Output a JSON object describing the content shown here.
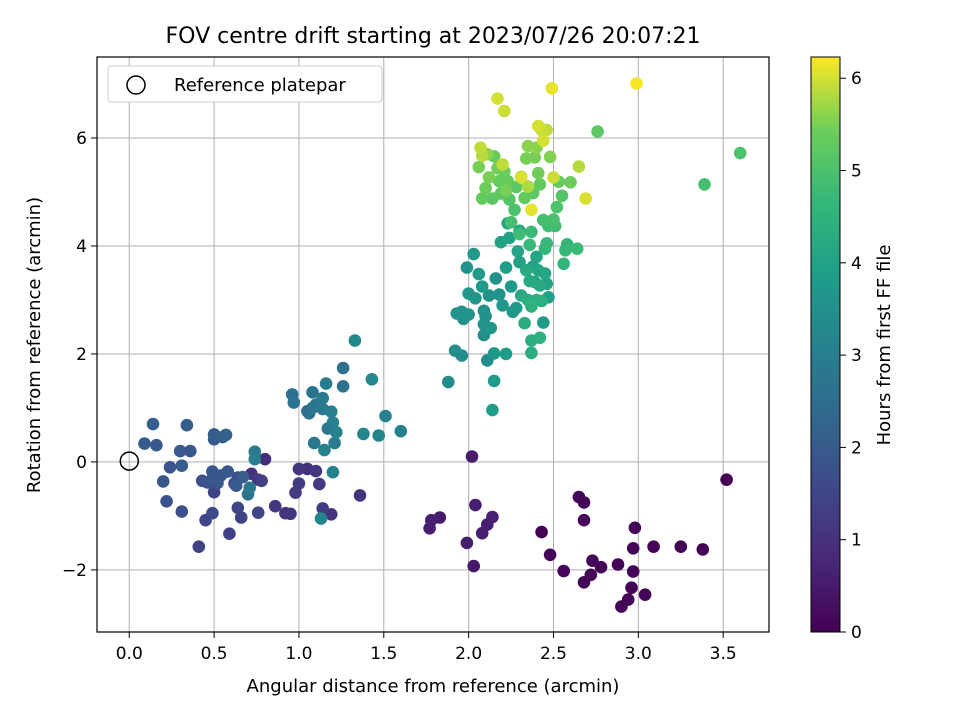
{
  "chart_data": {
    "type": "scatter",
    "title": "FOV centre drift starting at 2023/07/26 20:07:21",
    "xlabel": "Angular distance from reference (arcmin)",
    "ylabel": "Rotation from reference (arcmin)",
    "xlim": [
      -0.19,
      3.77
    ],
    "ylim": [
      -3.15,
      7.5
    ],
    "xticks": [
      "0.0",
      "0.5",
      "1.0",
      "1.5",
      "2.0",
      "2.5",
      "3.0",
      "3.5"
    ],
    "yticks": [
      "−2",
      "0",
      "2",
      "4",
      "6"
    ],
    "grid": true,
    "legend": {
      "position": "upper-left",
      "entries": [
        "Reference platepar"
      ]
    },
    "reference_point": {
      "x": 0.0,
      "y": 0.0,
      "label": "Reference platepar"
    },
    "colorbar": {
      "label": "Hours from first FF file",
      "min": 0,
      "max": 6.23,
      "ticks": [
        "0",
        "1",
        "2",
        "3",
        "4",
        "5",
        "6"
      ],
      "colormap": "viridis"
    },
    "points": [
      [
        2.43,
        -1.3,
        0.05
      ],
      [
        2.48,
        -1.72,
        0.08
      ],
      [
        2.56,
        -2.02,
        0.1
      ],
      [
        2.65,
        -0.65,
        0.12
      ],
      [
        2.68,
        -0.75,
        0.06
      ],
      [
        2.68,
        -1.08,
        0.04
      ],
      [
        2.68,
        -2.23,
        0.05
      ],
      [
        2.72,
        -2.09,
        0.07
      ],
      [
        2.73,
        -1.83,
        0.09
      ],
      [
        2.78,
        -1.95,
        0.05
      ],
      [
        2.88,
        -1.9,
        0.03
      ],
      [
        2.9,
        -2.68,
        0.04
      ],
      [
        2.94,
        -2.55,
        0.06
      ],
      [
        2.96,
        -2.33,
        0.05
      ],
      [
        2.97,
        -2.03,
        0.08
      ],
      [
        2.97,
        -1.6,
        0.07
      ],
      [
        2.98,
        -1.22,
        0.05
      ],
      [
        3.04,
        -2.46,
        0.04
      ],
      [
        3.09,
        -1.57,
        0.03
      ],
      [
        3.25,
        -1.57,
        0.02
      ],
      [
        3.38,
        -1.62,
        0.03
      ],
      [
        3.52,
        -0.33,
        0.02
      ],
      [
        1.77,
        -1.23,
        0.55
      ],
      [
        1.78,
        -1.08,
        0.6
      ],
      [
        1.83,
        -1.03,
        0.5
      ],
      [
        1.99,
        -1.5,
        0.55
      ],
      [
        2.02,
        0.1,
        0.5
      ],
      [
        2.03,
        -1.93,
        0.45
      ],
      [
        2.04,
        -0.8,
        0.55
      ],
      [
        2.08,
        -1.32,
        0.6
      ],
      [
        2.11,
        -1.16,
        0.58
      ],
      [
        2.14,
        -1.02,
        0.62
      ],
      [
        0.72,
        -0.22,
        1.0
      ],
      [
        0.8,
        0.05,
        0.9
      ],
      [
        0.86,
        -0.82,
        1.1
      ],
      [
        0.92,
        -0.95,
        1.05
      ],
      [
        0.95,
        -0.96,
        1.15
      ],
      [
        0.98,
        -0.57,
        1.2
      ],
      [
        1.0,
        -0.4,
        1.25
      ],
      [
        1.0,
        -0.13,
        1.1
      ],
      [
        1.05,
        -0.13,
        1.0
      ],
      [
        1.1,
        -0.17,
        1.15
      ],
      [
        1.12,
        -0.41,
        1.2
      ],
      [
        1.14,
        -0.86,
        1.25
      ],
      [
        1.19,
        -0.97,
        1.05
      ],
      [
        1.36,
        -0.62,
        1.05
      ],
      [
        0.78,
        -0.35,
        1.3
      ],
      [
        0.76,
        -0.33,
        1.2
      ],
      [
        0.41,
        -1.57,
        1.4
      ],
      [
        0.45,
        -1.08,
        1.5
      ],
      [
        0.49,
        -0.95,
        1.55
      ],
      [
        0.5,
        -0.56,
        1.45
      ],
      [
        0.59,
        -1.33,
        1.35
      ],
      [
        0.64,
        -0.85,
        1.5
      ],
      [
        0.66,
        -1.03,
        1.4
      ],
      [
        0.62,
        -0.4,
        1.6
      ],
      [
        0.64,
        -0.29,
        1.65
      ],
      [
        0.76,
        -0.94,
        1.5
      ],
      [
        0.09,
        0.34,
        2.0
      ],
      [
        0.14,
        0.7,
        2.1
      ],
      [
        0.16,
        0.31,
        1.95
      ],
      [
        0.2,
        -0.36,
        1.9
      ],
      [
        0.22,
        -0.73,
        1.8
      ],
      [
        0.24,
        -0.1,
        1.85
      ],
      [
        0.3,
        0.2,
        1.95
      ],
      [
        0.31,
        -0.07,
        2.0
      ],
      [
        0.31,
        -0.92,
        1.75
      ],
      [
        0.34,
        0.68,
        2.05
      ],
      [
        0.36,
        0.2,
        1.9
      ],
      [
        0.43,
        -0.35,
        1.7
      ],
      [
        0.46,
        -0.38,
        1.8
      ],
      [
        0.48,
        -0.35,
        1.85
      ],
      [
        0.49,
        -0.18,
        1.9
      ],
      [
        0.5,
        0.51,
        2.05
      ],
      [
        0.51,
        -0.31,
        1.95
      ],
      [
        0.52,
        -0.39,
        1.9
      ],
      [
        0.54,
        -0.25,
        1.85
      ],
      [
        0.55,
        0.46,
        2.1
      ],
      [
        0.57,
        0.5,
        2.15
      ],
      [
        0.58,
        -0.18,
        1.95
      ],
      [
        0.63,
        -0.44,
        2.0
      ],
      [
        0.67,
        -0.28,
        2.05
      ],
      [
        0.5,
        0.42,
        2.0
      ],
      [
        0.7,
        -0.6,
        2.7
      ],
      [
        0.71,
        -0.48,
        2.8
      ],
      [
        0.74,
        0.19,
        2.9
      ],
      [
        0.74,
        0.05,
        3.05
      ],
      [
        0.96,
        1.25,
        2.6
      ],
      [
        0.97,
        1.1,
        2.65
      ],
      [
        1.05,
        0.94,
        2.5
      ],
      [
        1.06,
        0.9,
        2.55
      ],
      [
        1.08,
        1.29,
        2.7
      ],
      [
        1.08,
        1.0,
        2.75
      ],
      [
        1.09,
        0.35,
        2.8
      ],
      [
        1.1,
        1.06,
        2.7
      ],
      [
        1.14,
        0.98,
        2.85
      ],
      [
        1.14,
        1.18,
        2.9
      ],
      [
        1.16,
        1.45,
        2.95
      ],
      [
        1.17,
        0.62,
        2.8
      ],
      [
        1.19,
        0.93,
        3.0
      ],
      [
        1.2,
        0.73,
        3.05
      ],
      [
        1.21,
        0.35,
        2.95
      ],
      [
        1.2,
        -0.19,
        3.1
      ],
      [
        1.13,
        -1.05,
        3.2
      ],
      [
        1.15,
        0.22,
        3.1
      ],
      [
        1.22,
        0.55,
        3.15
      ],
      [
        1.26,
        1.74,
        2.6
      ],
      [
        1.26,
        1.4,
        2.65
      ],
      [
        1.33,
        2.25,
        3.3
      ],
      [
        1.38,
        0.52,
        3.2
      ],
      [
        1.43,
        1.53,
        3.25
      ],
      [
        1.47,
        0.49,
        3.2
      ],
      [
        1.51,
        0.85,
        3.1
      ],
      [
        1.6,
        0.57,
        3.05
      ],
      [
        1.88,
        1.48,
        3.35
      ],
      [
        1.92,
        2.06,
        3.45
      ],
      [
        1.93,
        2.75,
        3.6
      ],
      [
        1.96,
        2.78,
        3.5
      ],
      [
        1.96,
        1.97,
        3.4
      ],
      [
        1.97,
        2.65,
        3.55
      ],
      [
        1.99,
        3.6,
        3.65
      ],
      [
        2.0,
        3.12,
        3.7
      ],
      [
        2.0,
        2.73,
        3.6
      ],
      [
        2.03,
        3.85,
        3.75
      ],
      [
        2.04,
        3.03,
        3.7
      ],
      [
        2.06,
        3.48,
        3.8
      ],
      [
        2.08,
        3.25,
        3.85
      ],
      [
        2.09,
        2.8,
        3.6
      ],
      [
        2.09,
        2.55,
        3.55
      ],
      [
        2.09,
        2.35,
        3.5
      ],
      [
        2.1,
        2.7,
        3.45
      ],
      [
        2.11,
        1.88,
        3.4
      ],
      [
        2.12,
        3.08,
        3.55
      ],
      [
        2.13,
        2.48,
        3.7
      ],
      [
        2.14,
        0.96,
        3.9
      ],
      [
        2.15,
        1.5,
        3.8
      ],
      [
        2.15,
        2.01,
        3.75
      ],
      [
        2.16,
        3.4,
        3.6
      ],
      [
        2.18,
        3.1,
        3.65
      ],
      [
        2.19,
        4.07,
        4.0
      ],
      [
        2.2,
        2.9,
        3.75
      ],
      [
        2.22,
        2.0,
        3.85
      ],
      [
        2.22,
        3.6,
        3.9
      ],
      [
        2.23,
        4.42,
        4.1
      ],
      [
        2.24,
        4.15,
        4.05
      ],
      [
        2.25,
        3.25,
        3.85
      ],
      [
        2.26,
        2.78,
        3.7
      ],
      [
        2.28,
        2.85,
        3.8
      ],
      [
        2.29,
        3.9,
        4.1
      ],
      [
        2.3,
        3.7,
        4.0
      ],
      [
        2.3,
        4.28,
        4.15
      ],
      [
        2.31,
        3.08,
        4.2
      ],
      [
        2.33,
        2.57,
        4.3
      ],
      [
        2.34,
        3.55,
        4.25
      ],
      [
        2.35,
        3.0,
        4.35
      ],
      [
        2.36,
        3.35,
        4.2
      ],
      [
        2.37,
        2.02,
        4.3
      ],
      [
        2.37,
        2.25,
        4.4
      ],
      [
        2.38,
        3.62,
        4.0
      ],
      [
        2.39,
        3.33,
        4.05
      ],
      [
        2.4,
        3.8,
        4.1
      ],
      [
        2.41,
        3.55,
        4.15
      ],
      [
        2.42,
        3.27,
        4.2
      ],
      [
        2.42,
        2.3,
        4.45
      ],
      [
        2.43,
        2.98,
        4.4
      ],
      [
        2.44,
        2.58,
        3.8
      ],
      [
        2.45,
        3.49,
        4.1
      ],
      [
        2.46,
        3.3,
        4.0
      ],
      [
        2.47,
        3.05,
        3.9
      ],
      [
        2.37,
        2.88,
        4.5
      ],
      [
        2.4,
        3.0,
        4.45
      ],
      [
        2.06,
        5.46,
        5.5
      ],
      [
        2.08,
        4.88,
        5.3
      ],
      [
        2.1,
        5.07,
        5.4
      ],
      [
        2.11,
        5.7,
        5.6
      ],
      [
        2.12,
        5.27,
        5.5
      ],
      [
        2.14,
        4.88,
        5.2
      ],
      [
        2.15,
        5.66,
        5.35
      ],
      [
        2.17,
        5.44,
        5.45
      ],
      [
        2.18,
        5.2,
        5.3
      ],
      [
        2.19,
        4.97,
        5.25
      ],
      [
        2.21,
        5.38,
        5.4
      ],
      [
        2.22,
        5.03,
        5.5
      ],
      [
        2.23,
        5.2,
        5.35
      ],
      [
        2.24,
        4.86,
        5.1
      ],
      [
        2.25,
        4.44,
        4.9
      ],
      [
        2.27,
        4.67,
        5.0
      ],
      [
        2.28,
        5.09,
        5.2
      ],
      [
        2.3,
        4.22,
        4.8
      ],
      [
        2.31,
        5.28,
        5.4
      ],
      [
        2.33,
        4.89,
        5.3
      ],
      [
        2.34,
        5.62,
        5.5
      ],
      [
        2.35,
        5.85,
        5.6
      ],
      [
        2.36,
        4.02,
        4.7
      ],
      [
        2.37,
        4.26,
        4.75
      ],
      [
        2.38,
        4.98,
        5.2
      ],
      [
        2.39,
        5.64,
        5.5
      ],
      [
        2.4,
        5.82,
        5.6
      ],
      [
        2.41,
        5.35,
        5.45
      ],
      [
        2.42,
        5.14,
        5.3
      ],
      [
        2.44,
        4.48,
        4.9
      ],
      [
        2.45,
        3.95,
        4.65
      ],
      [
        2.46,
        4.05,
        4.7
      ],
      [
        2.47,
        4.37,
        4.8
      ],
      [
        2.48,
        5.65,
        5.55
      ],
      [
        2.5,
        4.49,
        4.95
      ],
      [
        2.51,
        4.37,
        4.85
      ],
      [
        2.52,
        4.72,
        5.0
      ],
      [
        2.53,
        5.19,
        5.3
      ],
      [
        2.55,
        4.93,
        5.1
      ],
      [
        2.56,
        3.67,
        4.6
      ],
      [
        2.57,
        3.92,
        4.7
      ],
      [
        2.58,
        4.03,
        4.65
      ],
      [
        2.6,
        5.18,
        5.4
      ],
      [
        2.64,
        3.95,
        4.75
      ],
      [
        2.76,
        6.12,
        5.2
      ],
      [
        3.39,
        5.14,
        4.9
      ],
      [
        3.6,
        5.72,
        5.0
      ],
      [
        2.07,
        5.82,
        5.9
      ],
      [
        2.08,
        5.67,
        5.85
      ],
      [
        2.17,
        6.73,
        6.0
      ],
      [
        2.2,
        5.51,
        5.9
      ],
      [
        2.21,
        6.5,
        5.95
      ],
      [
        2.31,
        5.27,
        6.05
      ],
      [
        2.37,
        4.67,
        6.1
      ],
      [
        2.41,
        6.22,
        6.0
      ],
      [
        2.43,
        6.15,
        5.95
      ],
      [
        2.46,
        6.15,
        5.9
      ],
      [
        2.49,
        6.92,
        6.1
      ],
      [
        2.5,
        5.27,
        5.95
      ],
      [
        2.65,
        5.47,
        5.85
      ],
      [
        2.69,
        4.88,
        6.05
      ],
      [
        2.99,
        7.01,
        6.2
      ],
      [
        2.44,
        5.95,
        6.0
      ],
      [
        2.35,
        5.1,
        5.8
      ]
    ]
  }
}
